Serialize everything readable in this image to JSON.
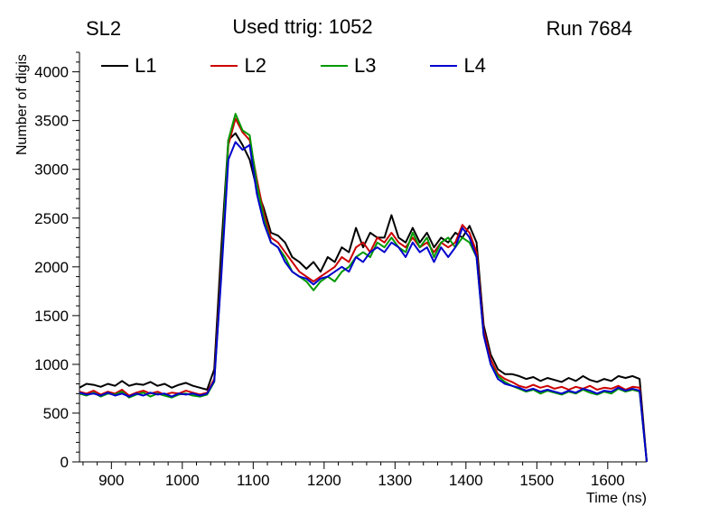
{
  "header": {
    "left": "SL2",
    "center": "Used ttrig: 1052",
    "right": "Run 7684"
  },
  "chart_data": {
    "type": "line",
    "title": "Used ttrig: 1052",
    "xlabel": "Time (ns)",
    "ylabel": "Number of digis",
    "xlim": [
      855,
      1655
    ],
    "ylim": [
      0,
      4200
    ],
    "x_ticks": [
      900,
      1000,
      1100,
      1200,
      1300,
      1400,
      1500,
      1600
    ],
    "y_ticks": [
      0,
      500,
      1000,
      1500,
      2000,
      2500,
      3000,
      3500,
      4000
    ],
    "x_minor_step": 20,
    "y_minor_step": 100,
    "grid": false,
    "legend_position": "top-inside",
    "x": [
      855,
      865,
      875,
      885,
      895,
      905,
      915,
      925,
      935,
      945,
      955,
      965,
      975,
      985,
      995,
      1005,
      1015,
      1025,
      1035,
      1045,
      1055,
      1065,
      1075,
      1085,
      1095,
      1105,
      1115,
      1125,
      1135,
      1145,
      1155,
      1165,
      1175,
      1185,
      1195,
      1205,
      1215,
      1225,
      1235,
      1245,
      1255,
      1265,
      1275,
      1285,
      1295,
      1305,
      1315,
      1325,
      1335,
      1345,
      1355,
      1365,
      1375,
      1385,
      1395,
      1405,
      1415,
      1425,
      1435,
      1445,
      1455,
      1465,
      1475,
      1485,
      1495,
      1505,
      1515,
      1525,
      1535,
      1545,
      1555,
      1565,
      1575,
      1585,
      1595,
      1605,
      1615,
      1625,
      1635,
      1645,
      1655
    ],
    "series": [
      {
        "name": "L1",
        "color": "#000000",
        "values": [
          760,
          800,
          790,
          770,
          800,
          780,
          830,
          780,
          800,
          790,
          820,
          780,
          800,
          760,
          790,
          810,
          780,
          760,
          740,
          950,
          2200,
          3300,
          3370,
          3250,
          3100,
          2800,
          2600,
          2350,
          2320,
          2250,
          2100,
          2050,
          1980,
          2050,
          1950,
          2100,
          2050,
          2200,
          2150,
          2400,
          2200,
          2350,
          2300,
          2300,
          2530,
          2300,
          2250,
          2400,
          2250,
          2350,
          2200,
          2300,
          2250,
          2350,
          2300,
          2420,
          2250,
          1400,
          1100,
          950,
          900,
          900,
          880,
          850,
          870,
          830,
          860,
          840,
          820,
          860,
          830,
          880,
          840,
          820,
          850,
          830,
          880,
          860,
          880,
          850,
          0
        ]
      },
      {
        "name": "L2",
        "color": "#cc0000",
        "values": [
          720,
          700,
          730,
          690,
          720,
          700,
          740,
          680,
          710,
          730,
          700,
          720,
          690,
          710,
          700,
          730,
          710,
          690,
          710,
          850,
          2000,
          3250,
          3520,
          3380,
          3300,
          2900,
          2550,
          2300,
          2250,
          2150,
          2050,
          1950,
          1900,
          1850,
          1900,
          1950,
          2000,
          2100,
          2050,
          2200,
          2250,
          2150,
          2300,
          2250,
          2350,
          2250,
          2200,
          2300,
          2200,
          2250,
          2150,
          2250,
          2200,
          2250,
          2430,
          2350,
          2150,
          1350,
          1050,
          900,
          850,
          820,
          780,
          760,
          790,
          760,
          780,
          750,
          770,
          740,
          770,
          750,
          780,
          740,
          760,
          750,
          780,
          740,
          770,
          760,
          0
        ]
      },
      {
        "name": "L3",
        "color": "#009900",
        "values": [
          700,
          680,
          710,
          670,
          700,
          690,
          720,
          660,
          690,
          710,
          670,
          700,
          680,
          660,
          690,
          700,
          680,
          670,
          690,
          820,
          1950,
          3300,
          3570,
          3400,
          3350,
          2850,
          2500,
          2250,
          2200,
          2100,
          1950,
          1900,
          1850,
          1760,
          1850,
          1900,
          1850,
          1950,
          2000,
          2100,
          2150,
          2100,
          2250,
          2200,
          2300,
          2200,
          2150,
          2350,
          2200,
          2300,
          2100,
          2250,
          2300,
          2200,
          2300,
          2250,
          2100,
          1300,
          1000,
          880,
          820,
          780,
          750,
          720,
          740,
          700,
          730,
          710,
          690,
          720,
          700,
          740,
          710,
          690,
          720,
          700,
          750,
          720,
          740,
          720,
          0
        ]
      },
      {
        "name": "L4",
        "color": "#0000cc",
        "values": [
          710,
          690,
          700,
          680,
          710,
          680,
          700,
          670,
          700,
          680,
          710,
          690,
          700,
          670,
          700,
          690,
          700,
          680,
          700,
          830,
          1900,
          3100,
          3280,
          3200,
          3250,
          2750,
          2450,
          2250,
          2200,
          2050,
          1950,
          1900,
          1880,
          1820,
          1880,
          1900,
          1950,
          2000,
          1950,
          2100,
          2050,
          2150,
          2200,
          2150,
          2250,
          2200,
          2100,
          2250,
          2150,
          2200,
          2050,
          2200,
          2100,
          2200,
          2400,
          2300,
          2100,
          1300,
          1000,
          850,
          800,
          780,
          760,
          730,
          750,
          720,
          740,
          720,
          700,
          730,
          710,
          750,
          730,
          700,
          730,
          720,
          760,
          730,
          750,
          730,
          0
        ]
      }
    ]
  }
}
